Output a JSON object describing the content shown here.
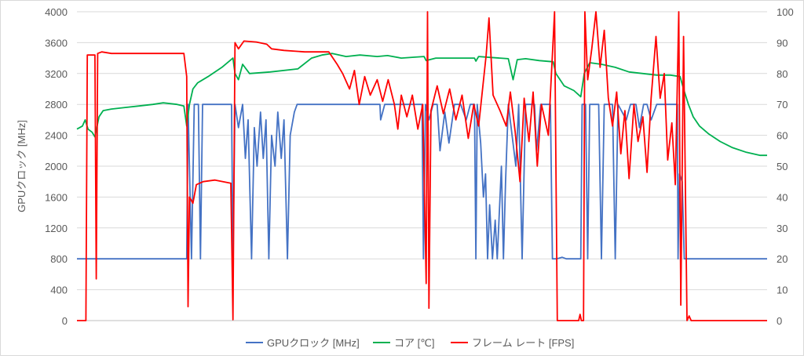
{
  "chart_data": {
    "type": "line",
    "title": "",
    "ylabel_left": "GPUクロック [MHz]",
    "ylabel_right": "",
    "xlabel": "",
    "ylim_left": [
      0,
      4000
    ],
    "ylim_right": [
      0,
      100
    ],
    "yticks_left": [
      0,
      400,
      800,
      1200,
      1600,
      2000,
      2400,
      2800,
      3200,
      3600,
      4000
    ],
    "yticks_right": [
      0,
      10,
      20,
      30,
      40,
      50,
      60,
      70,
      80,
      90,
      100
    ],
    "ytick_labels_left": [
      "0",
      "400",
      "800",
      "1200",
      "1600",
      "2000",
      "2400",
      "2800",
      "3200",
      "3600",
      "4000"
    ],
    "ytick_labels_right": [
      "0",
      "10",
      "20",
      "30",
      "40",
      "50",
      "60",
      "70",
      "80",
      "90",
      "100"
    ],
    "grid": true,
    "legend_position": "bottom",
    "x_range": [
      0,
      100
    ],
    "series": [
      {
        "name": "GPUクロック [MHz]",
        "axis": "left",
        "color": "#4472c4",
        "points": [
          [
            0,
            800
          ],
          [
            15.9,
            800
          ],
          [
            16.1,
            2800
          ],
          [
            16.6,
            800
          ],
          [
            17.0,
            2800
          ],
          [
            17.6,
            2800
          ],
          [
            17.9,
            800
          ],
          [
            18.2,
            2800
          ],
          [
            22.4,
            2800
          ],
          [
            22.6,
            800
          ],
          [
            22.9,
            2800
          ],
          [
            23.4,
            2500
          ],
          [
            24.0,
            2800
          ],
          [
            24.4,
            2100
          ],
          [
            24.8,
            2600
          ],
          [
            25.3,
            800
          ],
          [
            25.7,
            2500
          ],
          [
            26.1,
            2000
          ],
          [
            26.6,
            2700
          ],
          [
            27.0,
            2100
          ],
          [
            27.4,
            2600
          ],
          [
            27.8,
            800
          ],
          [
            28.2,
            2400
          ],
          [
            28.7,
            2000
          ],
          [
            29.1,
            2700
          ],
          [
            29.6,
            2100
          ],
          [
            30.0,
            2600
          ],
          [
            30.5,
            800
          ],
          [
            30.9,
            2400
          ],
          [
            31.5,
            2700
          ],
          [
            31.9,
            2800
          ],
          [
            43.9,
            2800
          ],
          [
            44.0,
            2600
          ],
          [
            44.6,
            2800
          ],
          [
            50.0,
            2800
          ],
          [
            50.2,
            800
          ],
          [
            50.5,
            2800
          ],
          [
            51.0,
            2600
          ],
          [
            51.6,
            2800
          ],
          [
            52.2,
            2800
          ],
          [
            52.6,
            2200
          ],
          [
            53.3,
            2700
          ],
          [
            53.9,
            2300
          ],
          [
            54.7,
            2800
          ],
          [
            55.6,
            2800
          ],
          [
            56.4,
            2600
          ],
          [
            57.0,
            2800
          ],
          [
            57.6,
            2800
          ],
          [
            57.8,
            800
          ],
          [
            58.0,
            2800
          ],
          [
            58.5,
            2300
          ],
          [
            58.9,
            1600
          ],
          [
            59.2,
            1900
          ],
          [
            59.5,
            800
          ],
          [
            59.8,
            1500
          ],
          [
            60.2,
            800
          ],
          [
            60.6,
            1300
          ],
          [
            60.9,
            800
          ],
          [
            61.5,
            2000
          ],
          [
            61.8,
            800
          ],
          [
            62.1,
            1800
          ],
          [
            62.5,
            2800
          ],
          [
            63.6,
            2000
          ],
          [
            64.0,
            2800
          ],
          [
            64.5,
            800
          ],
          [
            65.0,
            2800
          ],
          [
            66.3,
            2800
          ],
          [
            66.6,
            2200
          ],
          [
            67.2,
            2800
          ],
          [
            68.6,
            2800
          ],
          [
            68.9,
            800
          ],
          [
            69.5,
            800
          ],
          [
            70.3,
            820
          ],
          [
            70.9,
            800
          ],
          [
            73.0,
            800
          ],
          [
            73.2,
            2800
          ],
          [
            73.7,
            2800
          ],
          [
            74.0,
            800
          ],
          [
            74.3,
            2800
          ],
          [
            75.6,
            2800
          ],
          [
            76.0,
            800
          ],
          [
            76.4,
            2800
          ],
          [
            77.6,
            2800
          ],
          [
            78.0,
            800
          ],
          [
            78.4,
            2800
          ],
          [
            79.6,
            2600
          ],
          [
            80.2,
            2800
          ],
          [
            81.0,
            2800
          ],
          [
            81.5,
            2500
          ],
          [
            82.1,
            2800
          ],
          [
            82.6,
            2800
          ],
          [
            83.2,
            2600
          ],
          [
            84.0,
            2800
          ],
          [
            86.5,
            2800
          ],
          [
            87.0,
            2800
          ],
          [
            87.1,
            800
          ],
          [
            87.3,
            1900
          ],
          [
            87.7,
            1800
          ],
          [
            88.0,
            800
          ],
          [
            100,
            800
          ]
        ]
      },
      {
        "name": "コア [℃]",
        "axis": "right",
        "color": "#00b050",
        "points": [
          [
            0,
            62
          ],
          [
            0.8,
            63
          ],
          [
            1.2,
            65
          ],
          [
            1.6,
            62
          ],
          [
            2.2,
            61
          ],
          [
            2.6,
            59.5
          ],
          [
            3.2,
            66
          ],
          [
            3.8,
            68
          ],
          [
            5,
            68.5
          ],
          [
            7,
            69
          ],
          [
            9,
            69.5
          ],
          [
            11,
            70
          ],
          [
            12.5,
            70.5
          ],
          [
            14.5,
            70
          ],
          [
            15.5,
            69.5
          ],
          [
            15.9,
            63
          ],
          [
            16.3,
            70
          ],
          [
            16.8,
            75
          ],
          [
            17.5,
            77
          ],
          [
            19,
            79
          ],
          [
            21,
            82
          ],
          [
            22.6,
            85
          ],
          [
            22.9,
            80
          ],
          [
            23.4,
            78
          ],
          [
            24,
            83
          ],
          [
            25,
            80
          ],
          [
            28,
            80.5
          ],
          [
            32,
            81.5
          ],
          [
            34,
            85
          ],
          [
            35.5,
            86
          ],
          [
            37,
            86.5
          ],
          [
            39,
            85.5
          ],
          [
            41,
            86
          ],
          [
            43.5,
            85.5
          ],
          [
            45,
            85.8
          ],
          [
            47,
            85
          ],
          [
            49,
            85.3
          ],
          [
            50.3,
            85.5
          ],
          [
            50.6,
            84.2
          ],
          [
            52,
            85
          ],
          [
            55,
            85
          ],
          [
            57.6,
            85
          ],
          [
            57.8,
            84
          ],
          [
            58.2,
            85.5
          ],
          [
            60,
            85.2
          ],
          [
            62.5,
            84.8
          ],
          [
            63.2,
            78
          ],
          [
            63.8,
            84.5
          ],
          [
            65,
            84.8
          ],
          [
            67,
            84.2
          ],
          [
            69,
            83.8
          ],
          [
            69.4,
            80
          ],
          [
            70.6,
            76
          ],
          [
            72,
            74.5
          ],
          [
            73.0,
            72.5
          ],
          [
            73.5,
            80
          ],
          [
            74.3,
            83.5
          ],
          [
            76,
            83
          ],
          [
            78,
            82
          ],
          [
            80,
            80.5
          ],
          [
            82,
            80
          ],
          [
            84,
            79.5
          ],
          [
            86,
            79.5
          ],
          [
            87.4,
            79
          ],
          [
            87.9,
            75
          ],
          [
            88.6,
            70
          ],
          [
            89.3,
            66
          ],
          [
            90.2,
            63
          ],
          [
            91.5,
            60.5
          ],
          [
            93.2,
            58
          ],
          [
            95,
            56
          ],
          [
            97,
            54.5
          ],
          [
            99,
            53.5
          ],
          [
            100,
            53.5
          ]
        ]
      },
      {
        "name": "フレーム レート [FPS]",
        "axis": "right",
        "color": "#ff0000",
        "points": [
          [
            0,
            0
          ],
          [
            1.3,
            0
          ],
          [
            1.5,
            86
          ],
          [
            2.6,
            86
          ],
          [
            2.8,
            13.5
          ],
          [
            3.0,
            86.5
          ],
          [
            3.6,
            87
          ],
          [
            5,
            86.5
          ],
          [
            7,
            86.5
          ],
          [
            10,
            86.5
          ],
          [
            13,
            86.5
          ],
          [
            15.5,
            86.5
          ],
          [
            15.9,
            79
          ],
          [
            16.1,
            4.5
          ],
          [
            16.3,
            40
          ],
          [
            16.8,
            38
          ],
          [
            17.3,
            44
          ],
          [
            18.3,
            45
          ],
          [
            20,
            45.5
          ],
          [
            22.3,
            44.5
          ],
          [
            22.6,
            0.3
          ],
          [
            22.9,
            90
          ],
          [
            23.4,
            88
          ],
          [
            24.2,
            90.5
          ],
          [
            26,
            90.2
          ],
          [
            27.5,
            89.5
          ],
          [
            28.2,
            88
          ],
          [
            30,
            87.5
          ],
          [
            33,
            87
          ],
          [
            36.5,
            87
          ],
          [
            37.7,
            83
          ],
          [
            38.5,
            80
          ],
          [
            39.5,
            75
          ],
          [
            40.2,
            81
          ],
          [
            40.9,
            70
          ],
          [
            41.7,
            79
          ],
          [
            42.5,
            73
          ],
          [
            43.5,
            78
          ],
          [
            44.3,
            71
          ],
          [
            45.1,
            78
          ],
          [
            46,
            70
          ],
          [
            46.5,
            62
          ],
          [
            47.0,
            73
          ],
          [
            47.8,
            66
          ],
          [
            48.6,
            73
          ],
          [
            49.4,
            62
          ],
          [
            50.1,
            70
          ],
          [
            50.6,
            12
          ],
          [
            50.8,
            100
          ],
          [
            51.0,
            4
          ],
          [
            51.3,
            68
          ],
          [
            52.2,
            76
          ],
          [
            53.1,
            67
          ],
          [
            54.0,
            75
          ],
          [
            54.9,
            65
          ],
          [
            55.8,
            73
          ],
          [
            56.7,
            59
          ],
          [
            57.5,
            70
          ],
          [
            58.2,
            63
          ],
          [
            59.3,
            86
          ],
          [
            59.7,
            98
          ],
          [
            60.3,
            73
          ],
          [
            61.3,
            68
          ],
          [
            62.2,
            63
          ],
          [
            62.8,
            74
          ],
          [
            63.5,
            61
          ],
          [
            64.2,
            45
          ],
          [
            64.8,
            72
          ],
          [
            65.5,
            58
          ],
          [
            66.1,
            74
          ],
          [
            66.7,
            50
          ],
          [
            67.3,
            70
          ],
          [
            68.3,
            60
          ],
          [
            69.2,
            100
          ],
          [
            69.6,
            0
          ],
          [
            72.7,
            0
          ],
          [
            72.9,
            2
          ],
          [
            73.1,
            0
          ],
          [
            73.4,
            0
          ],
          [
            73.6,
            100
          ],
          [
            74.0,
            78
          ],
          [
            74.6,
            88
          ],
          [
            75.2,
            100
          ],
          [
            75.8,
            82
          ],
          [
            76.4,
            94
          ],
          [
            77.0,
            72
          ],
          [
            77.6,
            63
          ],
          [
            78.2,
            74
          ],
          [
            78.8,
            54
          ],
          [
            79.4,
            68
          ],
          [
            80.0,
            46
          ],
          [
            80.7,
            70
          ],
          [
            81.3,
            58
          ],
          [
            82.0,
            66
          ],
          [
            82.6,
            48
          ],
          [
            83.2,
            72
          ],
          [
            83.9,
            92
          ],
          [
            84.5,
            72
          ],
          [
            85.1,
            80
          ],
          [
            85.6,
            52
          ],
          [
            86.2,
            64
          ],
          [
            86.7,
            44
          ],
          [
            87.2,
            100
          ],
          [
            87.5,
            5
          ],
          [
            87.9,
            92
          ],
          [
            88.4,
            0
          ],
          [
            88.7,
            1.5
          ],
          [
            89.0,
            0
          ],
          [
            100,
            0
          ]
        ]
      }
    ]
  }
}
